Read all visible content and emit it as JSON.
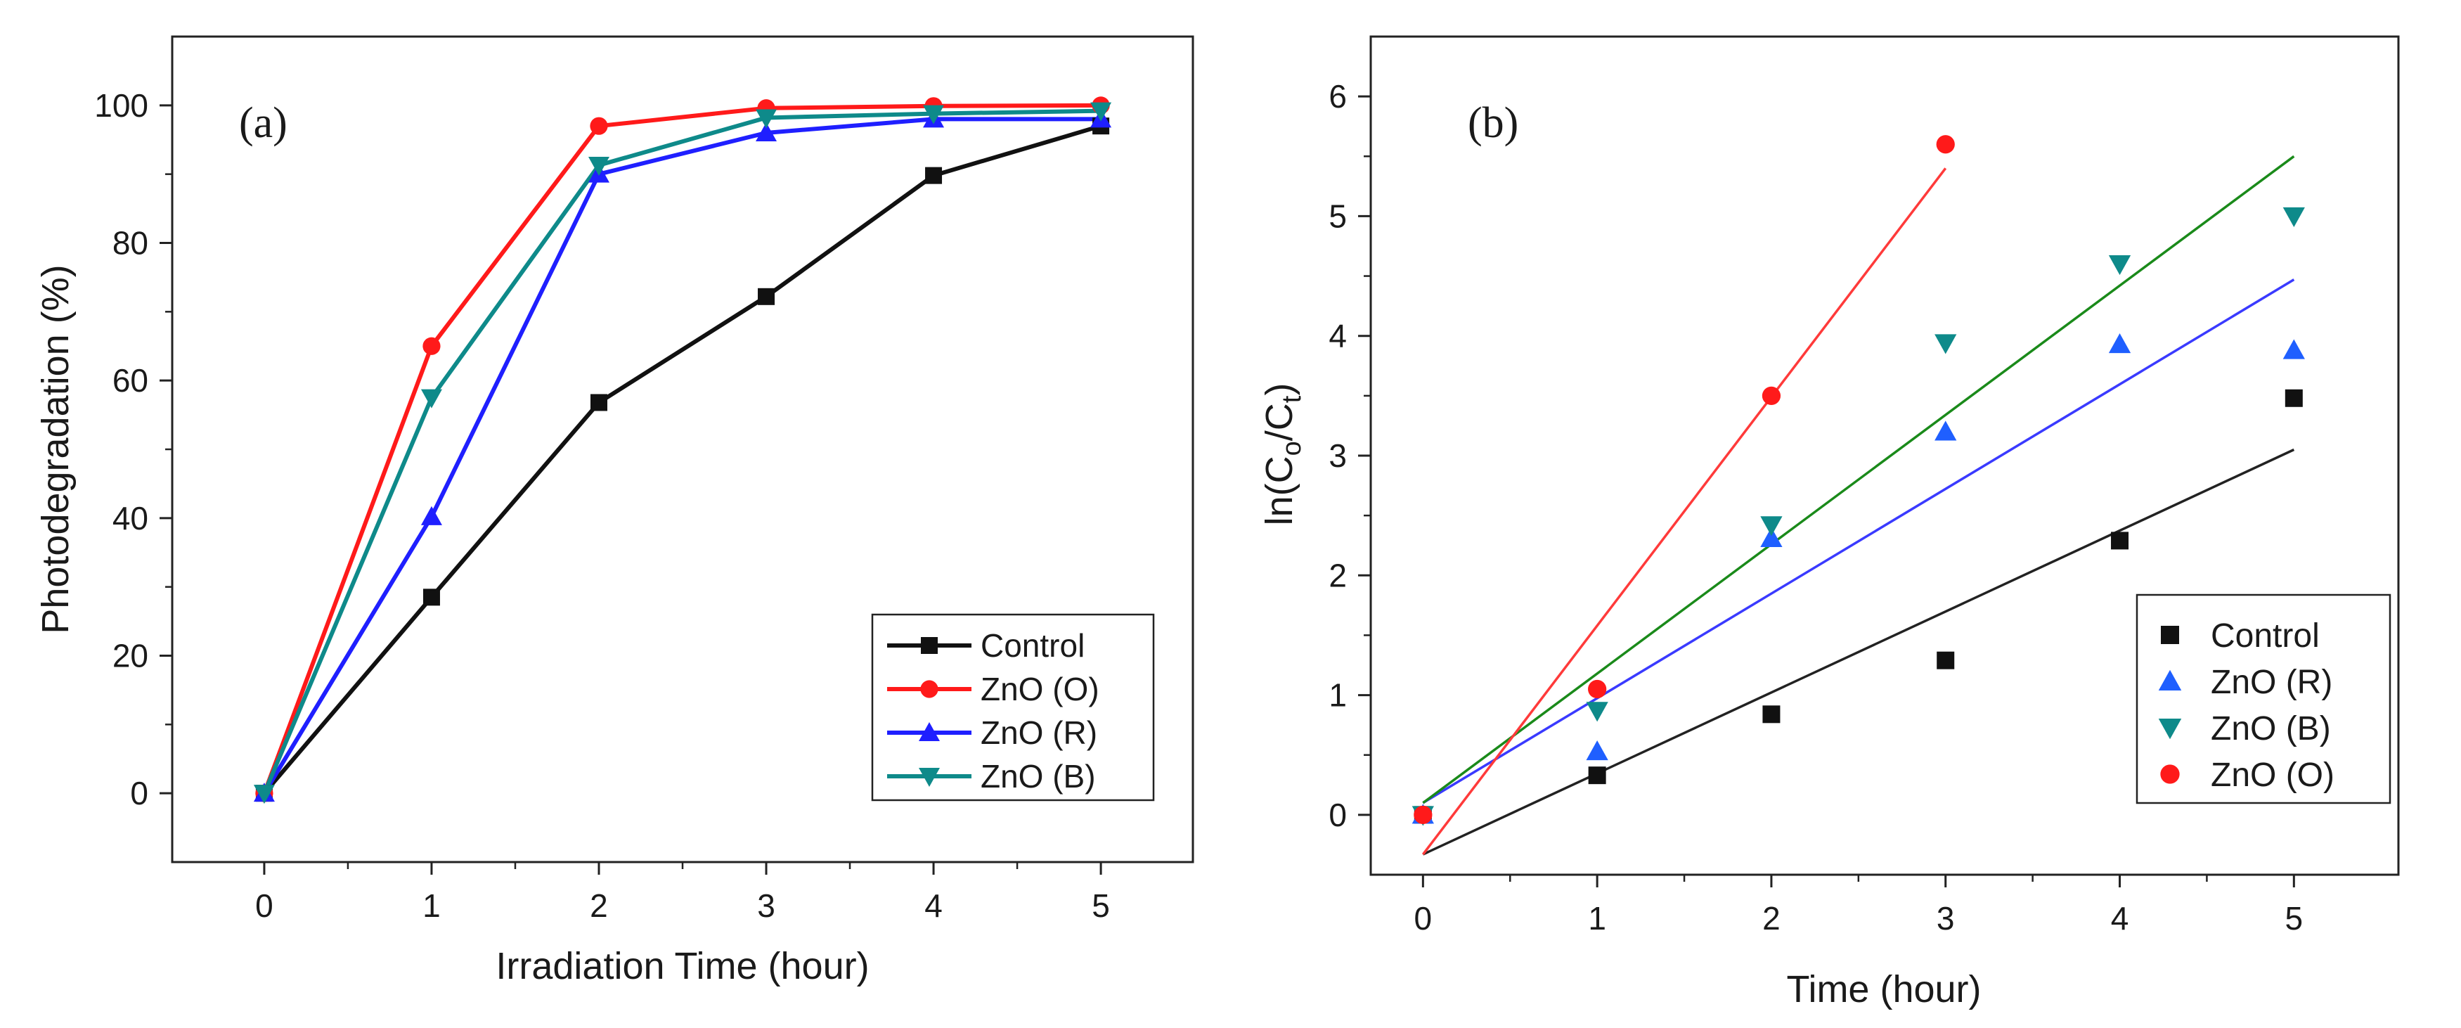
{
  "chart_data": [
    {
      "type": "line",
      "panel_label": "(a)",
      "title": "",
      "xlabel": "Irradiation Time (hour)",
      "ylabel": "Photodegradation (%)",
      "xlim": [
        -0.55,
        5.55
      ],
      "ylim": [
        -10,
        110
      ],
      "xticks": [
        0,
        1,
        2,
        3,
        4,
        5
      ],
      "xtick_labels": [
        "0",
        "1",
        "2",
        "3",
        "4",
        "5"
      ],
      "yticks": [
        0,
        20,
        40,
        60,
        80,
        100
      ],
      "ytick_labels": [
        "0",
        "20",
        "40",
        "60",
        "80",
        "100"
      ],
      "grid": false,
      "legend_position": "bottom-right",
      "x": [
        0,
        1,
        2,
        3,
        4,
        5
      ],
      "series": [
        {
          "name": "Control",
          "color": "#111111",
          "marker": "square",
          "values": [
            0,
            28.5,
            56.8,
            72.2,
            89.8,
            97
          ]
        },
        {
          "name": "ZnO (O)",
          "color": "#ff1a1a",
          "marker": "circle",
          "values": [
            0,
            65,
            97,
            99.6,
            99.9,
            100
          ]
        },
        {
          "name": "ZnO (R)",
          "color": "#1f1fff",
          "marker": "triangle-up",
          "values": [
            0,
            40.2,
            90,
            96,
            98,
            98
          ]
        },
        {
          "name": "ZnO (B)",
          "color": "#0e8a8a",
          "marker": "triangle-down",
          "values": [
            0,
            57.5,
            91.3,
            98.2,
            98.8,
            99.2
          ]
        }
      ],
      "legend_order": [
        "Control",
        "ZnO (O)",
        "ZnO (R)",
        "ZnO (B)"
      ]
    },
    {
      "type": "scatter",
      "panel_label": "(b)",
      "title": "",
      "xlabel": "Time (hour)",
      "ylabel": "ln(Co/Ct)",
      "ylabel_parts": {
        "prefix": "ln(C",
        "sub1": "o",
        "mid": "/C",
        "sub2": "t",
        "suffix": ")"
      },
      "xlim": [
        -0.3,
        5.6
      ],
      "ylim": [
        -0.5,
        6.5
      ],
      "xticks": [
        0,
        1,
        2,
        3,
        4,
        5
      ],
      "xtick_labels": [
        "0",
        "1",
        "2",
        "3",
        "4",
        "5"
      ],
      "yticks": [
        0,
        1,
        2,
        3,
        4,
        5,
        6
      ],
      "ytick_labels": [
        "0",
        "1",
        "2",
        "3",
        "4",
        "5",
        "6"
      ],
      "grid": false,
      "legend_position": "bottom-right",
      "series": [
        {
          "name": "Control",
          "color": "#111111",
          "marker": "square",
          "x": [
            0,
            1,
            2,
            3,
            4,
            5
          ],
          "y": [
            0,
            0.33,
            0.84,
            1.29,
            2.29,
            3.48
          ],
          "fit": {
            "x": [
              0,
              5
            ],
            "y": [
              -0.33,
              3.05
            ]
          }
        },
        {
          "name": "ZnO (R)",
          "color": "#1f5fff",
          "marker": "triangle-up",
          "x": [
            0,
            1,
            2,
            3,
            4,
            5
          ],
          "y": [
            0,
            0.53,
            2.31,
            3.2,
            3.93,
            3.88
          ],
          "fit": {
            "x": [
              0,
              5
            ],
            "y": [
              0.1,
              4.47
            ]
          }
        },
        {
          "name": "ZnO (B)",
          "color": "#0e8a8a",
          "marker": "triangle-down",
          "x": [
            0,
            1,
            2,
            3,
            4,
            5
          ],
          "y": [
            0,
            0.87,
            2.42,
            3.94,
            4.6,
            5
          ],
          "fit": {
            "x": [
              0,
              5
            ],
            "y": [
              0.1,
              5.5
            ]
          }
        },
        {
          "name": "ZnO (O)",
          "color": "#ff1a1a",
          "marker": "circle",
          "x": [
            0,
            1,
            2,
            3
          ],
          "y": [
            0,
            1.05,
            3.5,
            5.6
          ],
          "fit": {
            "x": [
              0,
              3
            ],
            "y": [
              -0.33,
              5.4
            ]
          }
        }
      ],
      "fit_colors": {
        "Control": "#222222",
        "ZnO (R)": "#3a3aff",
        "ZnO (B)": "#1a8a1a",
        "ZnO (O)": "#ff3a3a"
      },
      "legend_order": [
        "Control",
        "ZnO (R)",
        "ZnO (B)",
        "ZnO (O)"
      ]
    }
  ]
}
